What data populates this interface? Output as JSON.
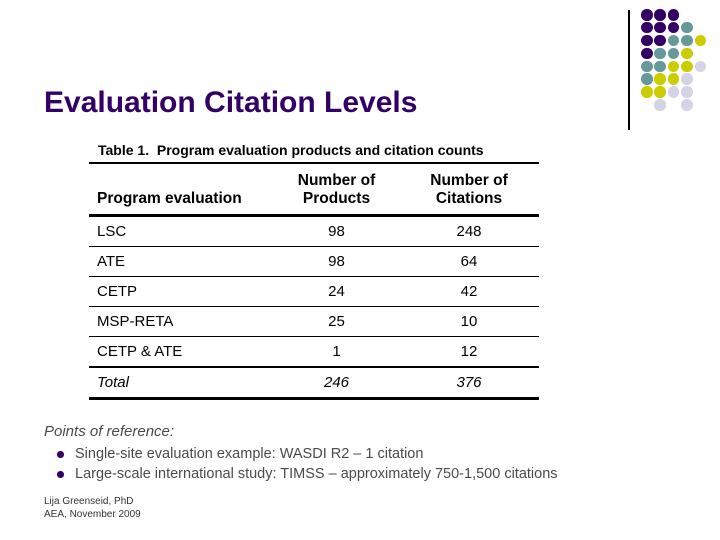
{
  "slide": {
    "title": "Evaluation Citation Levels"
  },
  "table": {
    "caption": "Table 1.  Program evaluation products and citation counts",
    "columns": [
      {
        "line1": "",
        "line2": "Program evaluation"
      },
      {
        "line1": "Number of",
        "line2": "Products"
      },
      {
        "line1": "Number of",
        "line2": "Citations"
      }
    ],
    "rows": [
      {
        "label": "LSC",
        "products": "98",
        "citations": "248",
        "italic": false
      },
      {
        "label": "ATE",
        "products": "98",
        "citations": "64",
        "italic": false
      },
      {
        "label": "CETP",
        "products": "24",
        "citations": "42",
        "italic": false
      },
      {
        "label": "MSP-RETA",
        "products": "25",
        "citations": "10",
        "italic": false
      },
      {
        "label": "CETP & ATE",
        "products": "1",
        "citations": "12",
        "italic": false
      },
      {
        "label": "Total",
        "products": "246",
        "citations": "376",
        "italic": true
      }
    ]
  },
  "notes": {
    "heading": "Points of reference:",
    "bullets": [
      "Single-site evaluation example: WASDI R2 – 1 citation",
      "Large-scale international study: TIMSS – approximately 750-1,500 citations"
    ]
  },
  "footer": {
    "line1": "Lija Greenseid, PhD",
    "line2": "AEA, November 2009"
  },
  "colors": {
    "title_text": "#330066",
    "bullet_marker": "#330066",
    "dot_purple": "#330066",
    "dot_teal": "#669999",
    "dot_yellow": "#CCCC00",
    "dot_lavender": "#D4D4E6",
    "accent_line": "#000000"
  },
  "decoration": {
    "grid": [
      [
        "P",
        "P",
        "P",
        "",
        ""
      ],
      [
        "P",
        "P",
        "P",
        "T",
        ""
      ],
      [
        "P",
        "P",
        "T",
        "T",
        "Y"
      ],
      [
        "P",
        "T",
        "T",
        "Y",
        ""
      ],
      [
        "T",
        "T",
        "Y",
        "Y",
        "L"
      ],
      [
        "T",
        "Y",
        "Y",
        "L",
        ""
      ],
      [
        "Y",
        "Y",
        "L",
        "L",
        ""
      ],
      [
        "",
        "L",
        "",
        "L",
        ""
      ]
    ]
  }
}
